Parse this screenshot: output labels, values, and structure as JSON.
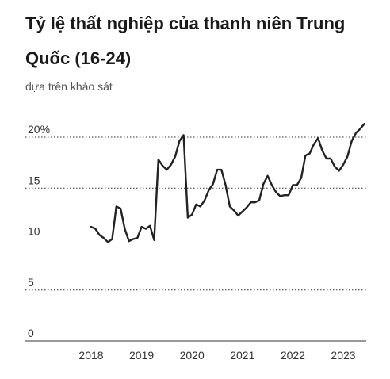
{
  "chart_data": {
    "type": "line",
    "title": "Tỷ lệ thất nghiệp của thanh niên Trung Quốc (16-24)",
    "subtitle": "dựa trên khảo sát",
    "xlabel": "",
    "ylabel": "",
    "ylim": [
      0,
      20
    ],
    "xlim": [
      2017.6,
      2023.6
    ],
    "grid": true,
    "y_ticks": [
      {
        "value": 20,
        "label": "20%"
      },
      {
        "value": 15,
        "label": "15"
      },
      {
        "value": 10,
        "label": "10"
      },
      {
        "value": 5,
        "label": "5"
      },
      {
        "value": 0,
        "label": "0"
      }
    ],
    "x_ticks": [
      {
        "value": 2018,
        "label": "2018"
      },
      {
        "value": 2019,
        "label": "2019"
      },
      {
        "value": 2020,
        "label": "2020"
      },
      {
        "value": 2021,
        "label": "2021"
      },
      {
        "value": 2022,
        "label": "2022"
      },
      {
        "value": 2023,
        "label": "2023"
      }
    ],
    "series": [
      {
        "color": "#222222",
        "x": [
          2018.0,
          2018.083,
          2018.167,
          2018.25,
          2018.333,
          2018.417,
          2018.5,
          2018.583,
          2018.667,
          2018.75,
          2018.833,
          2018.917,
          2019.0,
          2019.083,
          2019.167,
          2019.25,
          2019.333,
          2019.417,
          2019.5,
          2019.583,
          2019.667,
          2019.75,
          2019.833,
          2019.917,
          2020.0,
          2020.083,
          2020.167,
          2020.25,
          2020.333,
          2020.417,
          2020.5,
          2020.583,
          2020.667,
          2020.75,
          2020.833,
          2020.917,
          2021.0,
          2021.083,
          2021.167,
          2021.25,
          2021.333,
          2021.417,
          2021.5,
          2021.583,
          2021.667,
          2021.75,
          2021.833,
          2021.917,
          2022.0,
          2022.083,
          2022.167,
          2022.25,
          2022.333,
          2022.417,
          2022.5,
          2022.583,
          2022.667,
          2022.75,
          2022.833,
          2022.917,
          2023.0,
          2023.083,
          2023.167,
          2023.25,
          2023.333,
          2023.417
        ],
        "values": [
          11.2,
          11.0,
          10.4,
          10.1,
          9.7,
          10.0,
          13.2,
          13.0,
          11.0,
          9.8,
          10.0,
          10.1,
          11.2,
          11.0,
          11.3,
          9.9,
          17.8,
          17.2,
          16.8,
          17.3,
          18.1,
          19.6,
          20.2,
          12.1,
          12.4,
          13.4,
          13.2,
          13.8,
          14.8,
          15.4,
          16.8,
          16.8,
          15.3,
          13.2,
          12.8,
          12.3,
          12.7,
          13.1,
          13.6,
          13.6,
          13.8,
          15.4,
          16.2,
          15.3,
          14.6,
          14.2,
          14.3,
          14.3,
          15.3,
          15.3,
          16.0,
          18.2,
          18.4,
          19.3,
          19.9,
          18.7,
          17.9,
          17.9,
          17.1,
          16.7,
          17.3,
          18.1,
          19.6,
          20.4,
          20.8,
          21.3
        ]
      }
    ]
  }
}
